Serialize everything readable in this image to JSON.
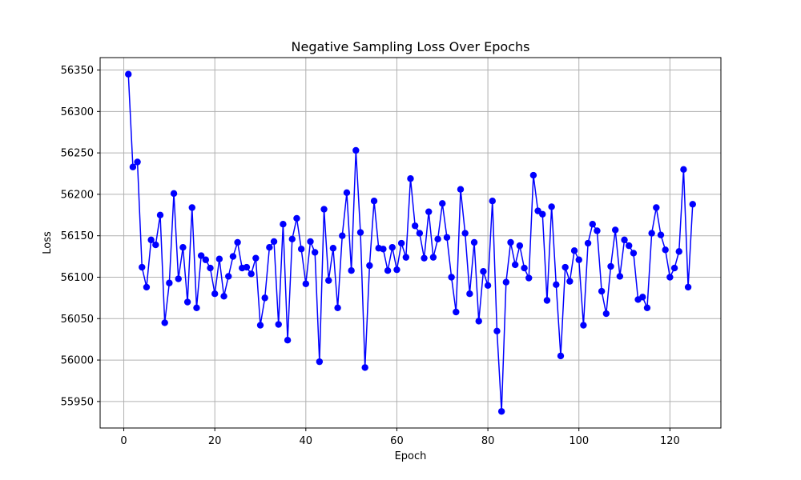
{
  "chart_data": {
    "type": "line",
    "title": "Negative Sampling Loss Over Epochs",
    "xlabel": "Epoch",
    "ylabel": "Loss",
    "xlim": [
      -5.2,
      131.2
    ],
    "ylim": [
      55918,
      56365
    ],
    "xticks": [
      0,
      20,
      40,
      60,
      80,
      100,
      120
    ],
    "yticks": [
      55950,
      56000,
      56050,
      56100,
      56150,
      56200,
      56250,
      56300,
      56350
    ],
    "grid": true,
    "line_color": "#0000ff",
    "marker": "circle",
    "series": [
      {
        "name": "",
        "x": [
          1,
          2,
          3,
          4,
          5,
          6,
          7,
          8,
          9,
          10,
          11,
          12,
          13,
          14,
          15,
          16,
          17,
          18,
          19,
          20,
          21,
          22,
          23,
          24,
          25,
          26,
          27,
          28,
          29,
          30,
          31,
          32,
          33,
          34,
          35,
          36,
          37,
          38,
          39,
          40,
          41,
          42,
          43,
          44,
          45,
          46,
          47,
          48,
          49,
          50,
          51,
          52,
          53,
          54,
          55,
          56,
          57,
          58,
          59,
          60,
          61,
          62,
          63,
          64,
          65,
          66,
          67,
          68,
          69,
          70,
          71,
          72,
          73,
          74,
          75,
          76,
          77,
          78,
          79,
          80,
          81,
          82,
          83,
          84,
          85,
          86,
          87,
          88,
          89,
          90,
          91,
          92,
          93,
          94,
          95,
          96,
          97,
          98,
          99,
          100,
          101,
          102,
          103,
          104,
          105,
          106,
          107,
          108,
          109,
          110,
          111,
          112,
          113,
          114,
          115,
          116,
          117,
          118,
          119,
          120,
          121,
          122,
          123,
          124,
          125
        ],
        "values": [
          56345,
          56233,
          56239,
          56112,
          56088,
          56145,
          56139,
          56175,
          56045,
          56093,
          56201,
          56098,
          56136,
          56070,
          56184,
          56063,
          56126,
          56121,
          56111,
          56080,
          56122,
          56077,
          56101,
          56125,
          56142,
          56111,
          56112,
          56104,
          56123,
          56042,
          56075,
          56136,
          56143,
          56043,
          56164,
          56024,
          56146,
          56171,
          56134,
          56092,
          56143,
          56130,
          55998,
          56182,
          56096,
          56135,
          56063,
          56150,
          56202,
          56108,
          56253,
          56154,
          55991,
          56114,
          56192,
          56135,
          56134,
          56108,
          56136,
          56109,
          56141,
          56124,
          56219,
          56162,
          56153,
          56123,
          56179,
          56124,
          56146,
          56189,
          56148,
          56100,
          56058,
          56206,
          56153,
          56080,
          56142,
          56047,
          56107,
          56090,
          56192,
          56035,
          55938,
          56094,
          56142,
          56115,
          56138,
          56111,
          56099,
          56223,
          56180,
          56176,
          56072,
          56185,
          56091,
          56005,
          56112,
          56095,
          56132,
          56121,
          56042,
          56141,
          56164,
          56156,
          56083,
          56056,
          56113,
          56157,
          56101,
          56145,
          56138,
          56129,
          56073,
          56076,
          56063,
          56153,
          56184,
          56151,
          56133,
          56100,
          56111,
          56131,
          56230,
          56088,
          56188
        ]
      }
    ]
  }
}
